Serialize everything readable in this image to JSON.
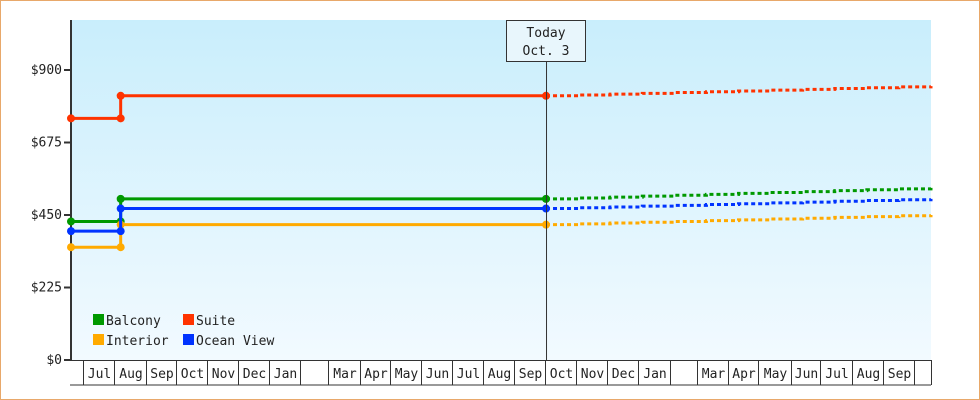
{
  "chart_data": {
    "type": "line",
    "title": "",
    "xlabel": "",
    "ylabel": "",
    "ylim": [
      0,
      1000
    ],
    "yticks": [
      0,
      225,
      450,
      675,
      900
    ],
    "ytick_labels": [
      "$0",
      "$225",
      "$450",
      "$675",
      "$900"
    ],
    "x_unit": "months from start",
    "xlim": [
      0,
      27.7
    ],
    "month_labels": [
      "Jul",
      "Aug",
      "Sep",
      "Oct",
      "Nov",
      "Dec",
      "Jan",
      "",
      "Mar",
      "Apr",
      "May",
      "Jun",
      "Jul",
      "Aug",
      "Sep",
      "Oct",
      "Nov",
      "Dec",
      "Jan",
      "",
      "Mar",
      "Apr",
      "May",
      "Jun",
      "Jul",
      "Aug",
      "Sep",
      ""
    ],
    "today": {
      "x": 15.3,
      "line1": "Today",
      "line2": "Oct. 3"
    },
    "legend_position": "bottom-left",
    "series": [
      {
        "name": "Balcony",
        "color": "#009900",
        "x": [
          0,
          1.6,
          15.3
        ],
        "values": [
          430,
          430,
          500
        ],
        "projection": {
          "x": [
            15.3,
            27.7
          ],
          "values": [
            500,
            534
          ]
        }
      },
      {
        "name": "Suite",
        "color": "#ff3300",
        "x": [
          0,
          1.6,
          15.3
        ],
        "values": [
          750,
          750,
          820
        ],
        "projection": {
          "x": [
            15.3,
            27.7
          ],
          "values": [
            820,
            850
          ]
        }
      },
      {
        "name": "Interior",
        "color": "#ffaa00",
        "x": [
          0,
          1.6,
          15.3
        ],
        "values": [
          350,
          350,
          420
        ],
        "projection": {
          "x": [
            15.3,
            27.7
          ],
          "values": [
            420,
            450
          ]
        }
      },
      {
        "name": "Ocean View",
        "color": "#0033ff",
        "x": [
          0,
          1.6,
          15.3
        ],
        "values": [
          400,
          400,
          470
        ],
        "projection": {
          "x": [
            15.3,
            27.7
          ],
          "values": [
            470,
            500
          ]
        }
      }
    ]
  }
}
